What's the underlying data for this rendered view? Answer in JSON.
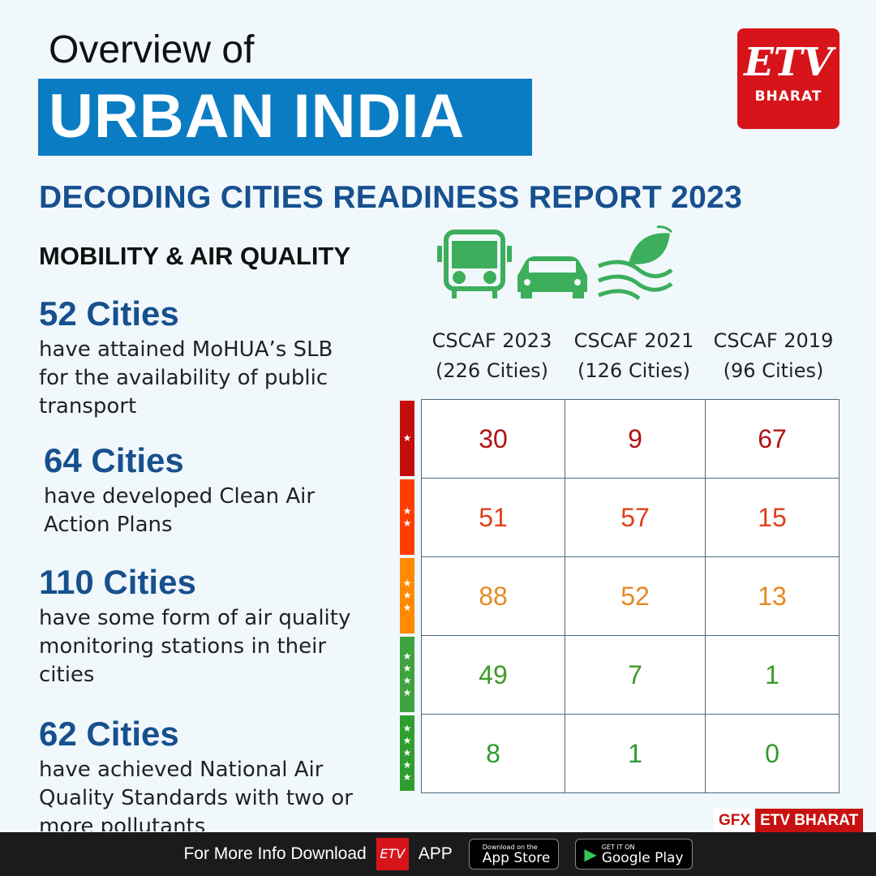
{
  "header": {
    "line1": "Overview of",
    "line2": "URBAN INDIA",
    "subtitle": "DECODING CITIES READINESS REPORT 2023",
    "section": "MOBILITY & AIR QUALITY"
  },
  "logo": {
    "mark": "ETV",
    "name": "BHARAT",
    "brand_color": "#d7141a"
  },
  "icons": [
    "bus-icon",
    "car-icon",
    "leaf-wind-icon"
  ],
  "stats": [
    {
      "value": "52 Cities",
      "desc": "have attained MoHUA’s SLB for the availability of public transport"
    },
    {
      "value": "64 Cities",
      "desc": "have developed Clean Air Action Plans"
    },
    {
      "value": "110 Cities",
      "desc": "have some form of air quality monitoring stations in their cities"
    },
    {
      "value": "62 Cities",
      "desc": "have achieved National Air Quality Standards with two or more pollutants"
    }
  ],
  "table": {
    "columns": [
      {
        "name": "CSCAF 2023",
        "count": "(226 Cities)"
      },
      {
        "name": "CSCAF 2021",
        "count": "(126 Cities)"
      },
      {
        "name": "CSCAF 2019",
        "count": "(96 Cities)"
      }
    ],
    "rows": [
      {
        "stars": "★",
        "color": "#c40d0d",
        "text_color": "#b01414",
        "values": [
          "30",
          "9",
          "67"
        ]
      },
      {
        "stars": "★★",
        "color": "#ff3d00",
        "text_color": "#e0401c",
        "values": [
          "51",
          "57",
          "15"
        ]
      },
      {
        "stars": "★★★",
        "color": "#ff8a00",
        "text_color": "#e58a22",
        "values": [
          "88",
          "52",
          "13"
        ]
      },
      {
        "stars": "★★★★",
        "color": "#3ea33e",
        "text_color": "#3d9a2a",
        "values": [
          "49",
          "7",
          "1"
        ]
      },
      {
        "stars": "★★★★★",
        "color": "#2f9e2f",
        "text_color": "#2f9a2f",
        "values": [
          "8",
          "1",
          "0"
        ]
      }
    ]
  },
  "credit": {
    "gfx": "GFX",
    "brand": "ETV BHARAT"
  },
  "footer": {
    "text": "For More Info Download",
    "app": "APP",
    "appstore_small": "Download on the",
    "appstore": "App Store",
    "play_small": "GET IT ON",
    "play": "Google Play"
  }
}
